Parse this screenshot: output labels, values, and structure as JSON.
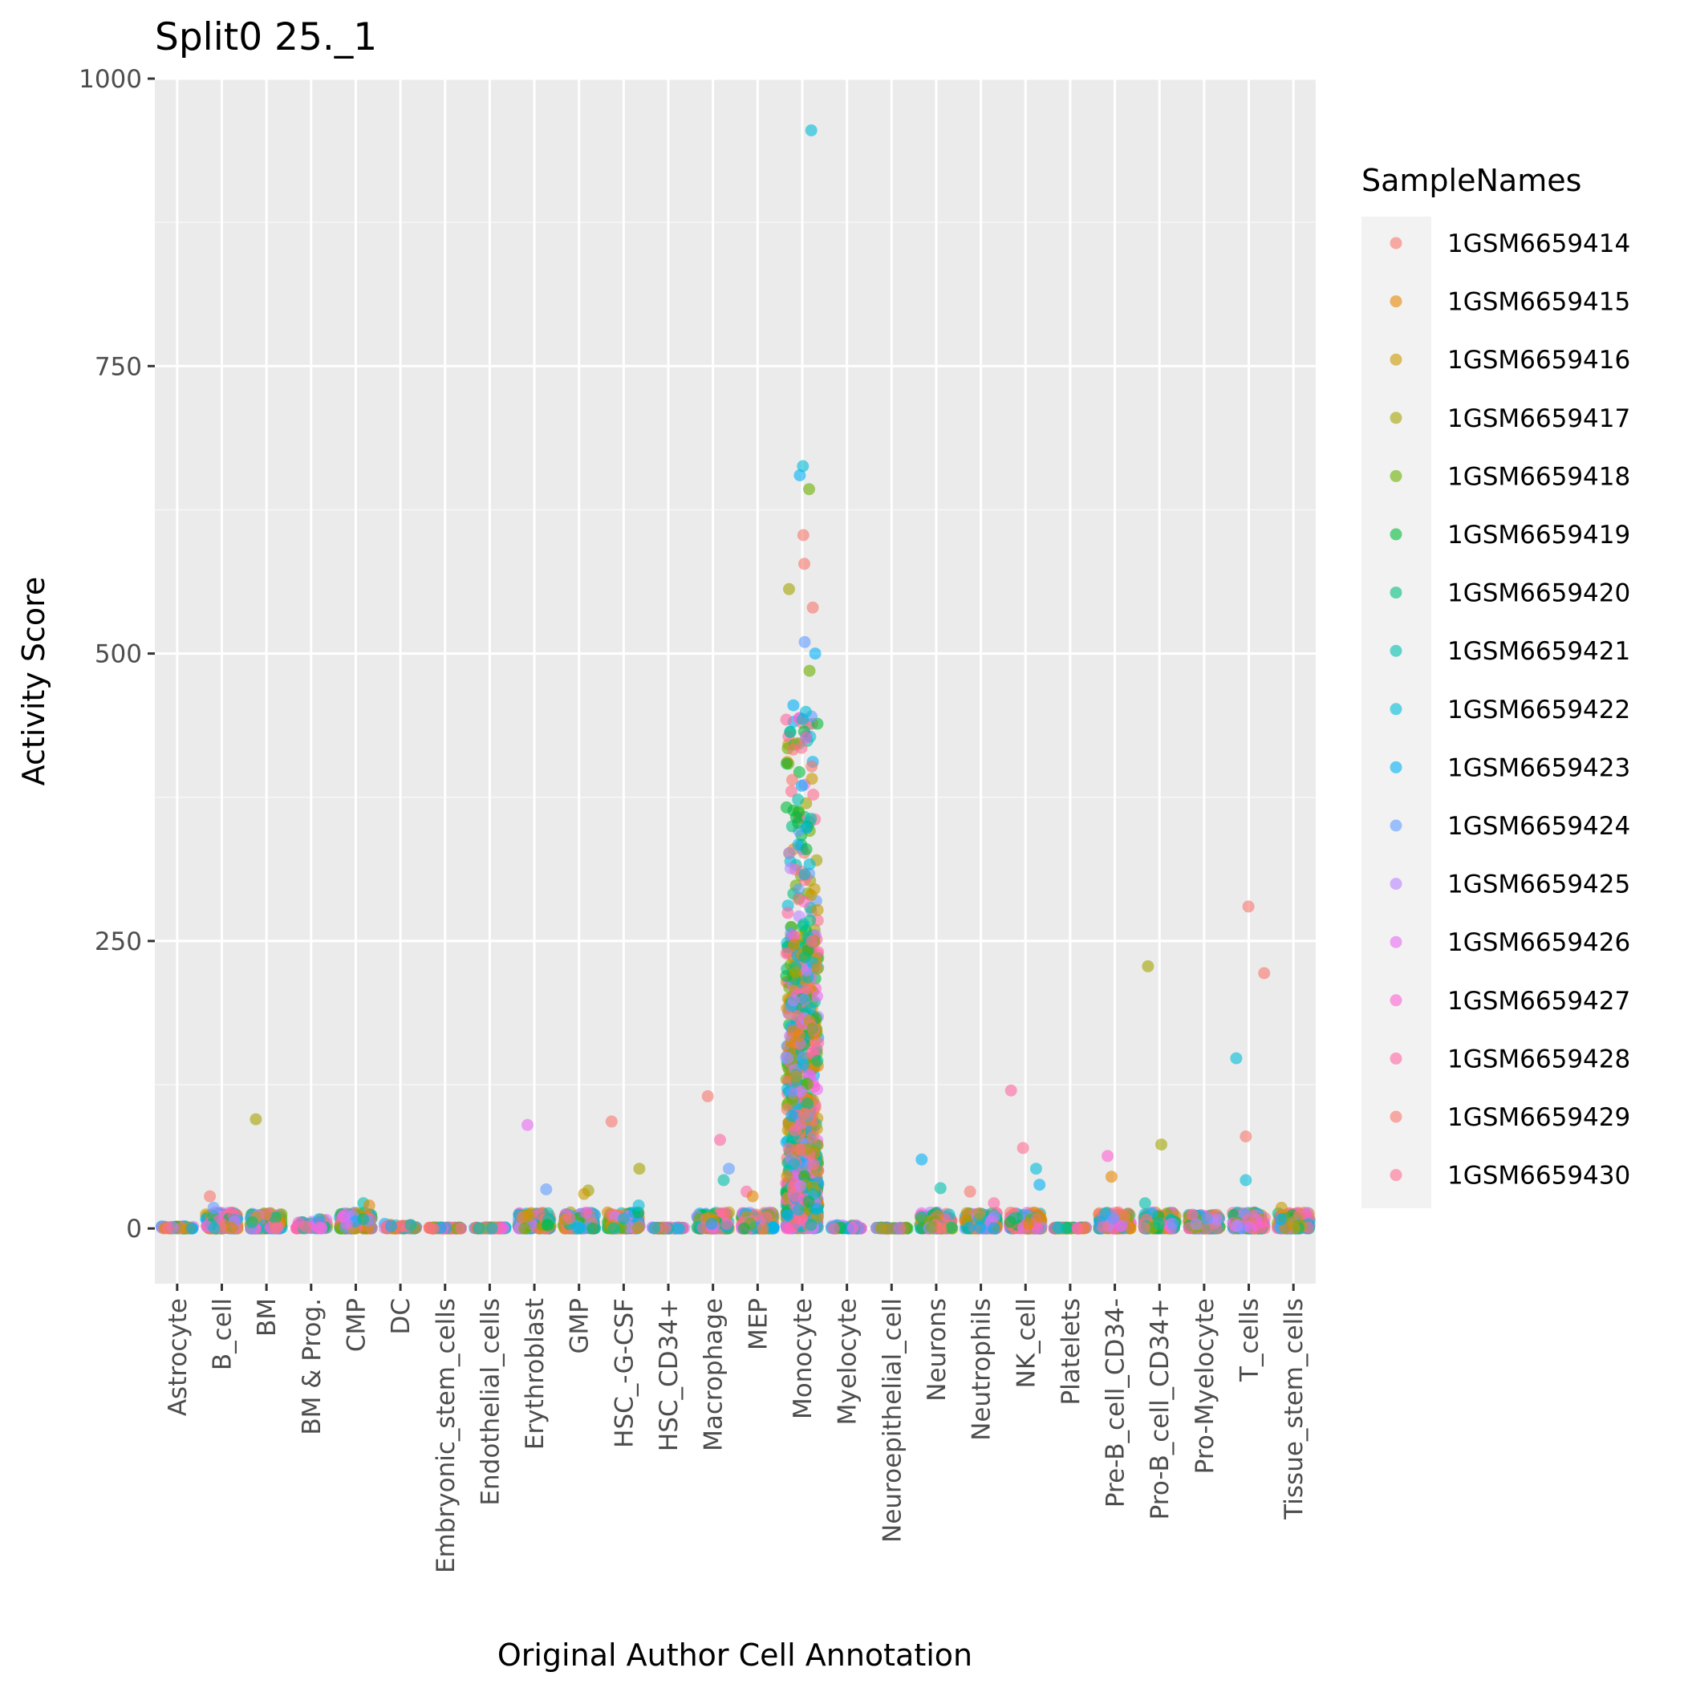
{
  "chart_data": {
    "type": "scatter",
    "title": "Split0 25._1",
    "xlabel": "Original Author Cell Annotation",
    "ylabel": "Activity Score",
    "ylim": [
      -48,
      1000
    ],
    "yticks": [
      0,
      250,
      500,
      750,
      1000
    ],
    "grid": true,
    "legend_position": "right",
    "legend_title": "SampleNames",
    "categories": [
      "Astrocyte",
      "B_cell",
      "BM",
      "BM & Prog.",
      "CMP",
      "DC",
      "Embryonic_stem_cells",
      "Endothelial_cells",
      "Erythroblast",
      "GMP",
      "HSC_-G-CSF",
      "HSC_CD34+",
      "Macrophage",
      "MEP",
      "Monocyte",
      "Myelocyte",
      "Neuroepithelial_cell",
      "Neurons",
      "Neutrophils",
      "NK_cell",
      "Platelets",
      "Pre-B_cell_CD34-",
      "Pro-B_cell_CD34+",
      "Pro-Myelocyte",
      "T_cells",
      "Tissue_stem_cells"
    ],
    "series": [
      {
        "name": "1GSM6659414",
        "color": "#F8766D"
      },
      {
        "name": "1GSM6659415",
        "color": "#E58700"
      },
      {
        "name": "1GSM6659416",
        "color": "#C99800"
      },
      {
        "name": "1GSM6659417",
        "color": "#A3A500"
      },
      {
        "name": "1GSM6659418",
        "color": "#6BB100"
      },
      {
        "name": "1GSM6659419",
        "color": "#00BA38"
      },
      {
        "name": "1GSM6659420",
        "color": "#00BF7D"
      },
      {
        "name": "1GSM6659421",
        "color": "#00C0AF"
      },
      {
        "name": "1GSM6659422",
        "color": "#00BCD8"
      },
      {
        "name": "1GSM6659423",
        "color": "#00B0F6"
      },
      {
        "name": "1GSM6659424",
        "color": "#619CFF"
      },
      {
        "name": "1GSM6659425",
        "color": "#B983FF"
      },
      {
        "name": "1GSM6659426",
        "color": "#E76BF3"
      },
      {
        "name": "1GSM6659427",
        "color": "#FD61D1"
      },
      {
        "name": "1GSM6659428",
        "color": "#FF67A4"
      },
      {
        "name": "1GSM6659429",
        "color": "#F8766D"
      },
      {
        "name": "1GSM6659430",
        "color": "#FF6C91"
      }
    ],
    "category_max": [
      2,
      28,
      95,
      8,
      22,
      4,
      1,
      1,
      90,
      33,
      93,
      1,
      115,
      28,
      955,
      3,
      1,
      60,
      32,
      120,
      1,
      63,
      228,
      12,
      280,
      18
    ],
    "notable_points": [
      {
        "category": "Monocyte",
        "y": 955,
        "series": "1GSM6659422"
      },
      {
        "category": "Monocyte",
        "y": 663,
        "series": "1GSM6659422"
      },
      {
        "category": "Monocyte",
        "y": 655,
        "series": "1GSM6659423"
      },
      {
        "category": "Monocyte",
        "y": 643,
        "series": "1GSM6659418"
      },
      {
        "category": "Monocyte",
        "y": 603,
        "series": "1GSM6659429"
      },
      {
        "category": "Monocyte",
        "y": 578,
        "series": "1GSM6659429"
      },
      {
        "category": "Monocyte",
        "y": 556,
        "series": "1GSM6659417"
      },
      {
        "category": "Monocyte",
        "y": 540,
        "series": "1GSM6659429"
      },
      {
        "category": "Monocyte",
        "y": 510,
        "series": "1GSM6659424"
      },
      {
        "category": "Monocyte",
        "y": 500,
        "series": "1GSM6659423"
      },
      {
        "category": "Monocyte",
        "y": 485,
        "series": "1GSM6659418"
      },
      {
        "category": "Monocyte",
        "y": 455,
        "series": "1GSM6659423"
      },
      {
        "category": "BM",
        "y": 95,
        "series": "1GSM6659417"
      },
      {
        "category": "Erythroblast",
        "y": 90,
        "series": "1GSM6659426"
      },
      {
        "category": "Erythroblast",
        "y": 34,
        "series": "1GSM6659424"
      },
      {
        "category": "GMP",
        "y": 33,
        "series": "1GSM6659417"
      },
      {
        "category": "GMP",
        "y": 30,
        "series": "1GSM6659416"
      },
      {
        "category": "HSC_-G-CSF",
        "y": 93,
        "series": "1GSM6659429"
      },
      {
        "category": "HSC_-G-CSF",
        "y": 52,
        "series": "1GSM6659417"
      },
      {
        "category": "HSC_-G-CSF",
        "y": 20,
        "series": "1GSM6659422"
      },
      {
        "category": "Macrophage",
        "y": 115,
        "series": "1GSM6659429"
      },
      {
        "category": "Macrophage",
        "y": 77,
        "series": "1GSM6659428"
      },
      {
        "category": "Macrophage",
        "y": 52,
        "series": "1GSM6659424"
      },
      {
        "category": "Macrophage",
        "y": 42,
        "series": "1GSM6659421"
      },
      {
        "category": "MEP",
        "y": 32,
        "series": "1GSM6659428"
      },
      {
        "category": "MEP",
        "y": 28,
        "series": "1GSM6659415"
      },
      {
        "category": "Neurons",
        "y": 60,
        "series": "1GSM6659423"
      },
      {
        "category": "Neurons",
        "y": 35,
        "series": "1GSM6659421"
      },
      {
        "category": "Neutrophils",
        "y": 32,
        "series": "1GSM6659429"
      },
      {
        "category": "Neutrophils",
        "y": 22,
        "series": "1GSM6659428"
      },
      {
        "category": "NK_cell",
        "y": 120,
        "series": "1GSM6659428"
      },
      {
        "category": "NK_cell",
        "y": 70,
        "series": "1GSM6659430"
      },
      {
        "category": "NK_cell",
        "y": 52,
        "series": "1GSM6659422"
      },
      {
        "category": "NK_cell",
        "y": 38,
        "series": "1GSM6659423"
      },
      {
        "category": "Pre-B_cell_CD34-",
        "y": 63,
        "series": "1GSM6659427"
      },
      {
        "category": "Pre-B_cell_CD34-",
        "y": 45,
        "series": "1GSM6659415"
      },
      {
        "category": "Pro-B_cell_CD34+",
        "y": 228,
        "series": "1GSM6659417"
      },
      {
        "category": "Pro-B_cell_CD34+",
        "y": 73,
        "series": "1GSM6659417"
      },
      {
        "category": "Pro-B_cell_CD34+",
        "y": 22,
        "series": "1GSM6659421"
      },
      {
        "category": "Pro-Myelocyte",
        "y": 12,
        "series": "1GSM6659427"
      },
      {
        "category": "T_cells",
        "y": 280,
        "series": "1GSM6659429"
      },
      {
        "category": "T_cells",
        "y": 222,
        "series": "1GSM6659429"
      },
      {
        "category": "T_cells",
        "y": 148,
        "series": "1GSM6659422"
      },
      {
        "category": "T_cells",
        "y": 80,
        "series": "1GSM6659429"
      },
      {
        "category": "T_cells",
        "y": 42,
        "series": "1GSM6659422"
      },
      {
        "category": "B_cell",
        "y": 28,
        "series": "1GSM6659429"
      },
      {
        "category": "B_cell",
        "y": 18,
        "series": "1GSM6659424"
      },
      {
        "category": "CMP",
        "y": 22,
        "series": "1GSM6659421"
      },
      {
        "category": "CMP",
        "y": 20,
        "series": "1GSM6659415"
      },
      {
        "category": "Tissue_stem_cells",
        "y": 18,
        "series": "1GSM6659416"
      },
      {
        "category": "Tissue_stem_cells",
        "y": 8,
        "series": "1GSM6659423"
      }
    ]
  }
}
